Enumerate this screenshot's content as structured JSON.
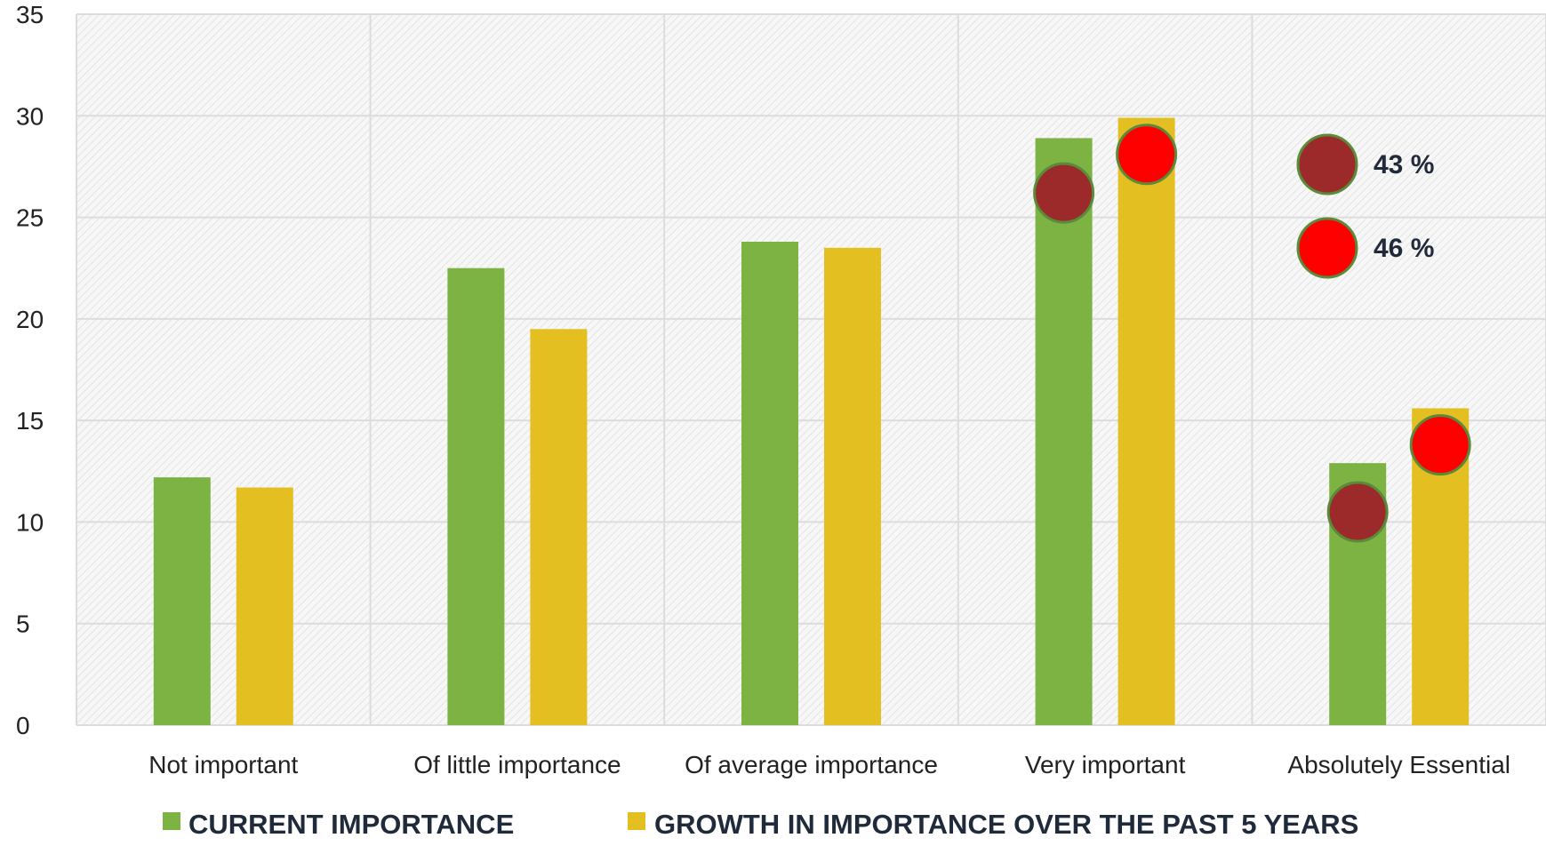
{
  "chart_data": {
    "type": "bar",
    "title": "",
    "xlabel": "",
    "ylabel": "",
    "ylim": [
      0,
      35
    ],
    "yticks": [
      0,
      5,
      10,
      15,
      20,
      25,
      30,
      35
    ],
    "grid": true,
    "categories": [
      "Not important",
      "Of little importance",
      "Of average importance",
      "Very important",
      "Absolutely Essential"
    ],
    "series": [
      {
        "name": "CURRENT IMPORTANCE",
        "color": "#7cb342",
        "values": [
          12.2,
          22.5,
          23.8,
          28.9,
          12.9
        ]
      },
      {
        "name": "GROWTH IN IMPORTANCE OVER THE PAST 5 YEARS",
        "color": "#e3bf22",
        "values": [
          11.7,
          19.5,
          23.5,
          29.9,
          15.6
        ]
      }
    ],
    "markers": [
      {
        "color": "#9c2a2a",
        "category": "Very important",
        "series_index": 0,
        "value": 26.2
      },
      {
        "color": "#ff0000",
        "category": "Very important",
        "series_index": 1,
        "value": 28.1
      },
      {
        "color": "#9c2a2a",
        "category": "Absolutely Essential",
        "series_index": 0,
        "value": 10.5
      },
      {
        "color": "#ff0000",
        "category": "Absolutely Essential",
        "series_index": 1,
        "value": 13.8
      }
    ],
    "annotations": [
      {
        "color": "#9c2a2a",
        "text": "43 %"
      },
      {
        "color": "#ff0000",
        "text": "46 %"
      }
    ],
    "legend_position": "bottom"
  }
}
